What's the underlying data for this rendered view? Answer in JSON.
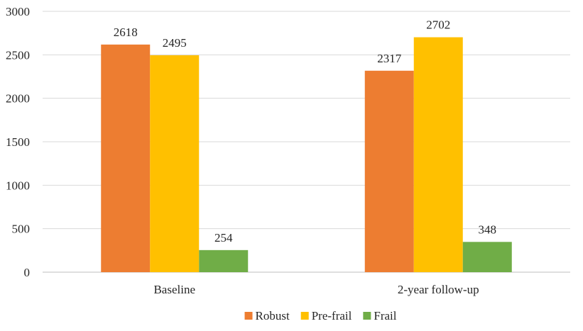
{
  "chart_data": {
    "type": "bar",
    "categories": [
      "Baseline",
      "2-year follow-up"
    ],
    "series": [
      {
        "name": "Robust",
        "values": [
          2618,
          2317
        ],
        "color": "#ED7D31"
      },
      {
        "name": "Pre-frail",
        "values": [
          2495,
          2702
        ],
        "color": "#FFC000"
      },
      {
        "name": "Frail",
        "values": [
          254,
          348
        ],
        "color": "#70AD47"
      }
    ],
    "ylim": [
      0,
      3000
    ],
    "yticks": [
      0,
      500,
      1000,
      1500,
      2000,
      2500,
      3000
    ],
    "grid": true,
    "legend_position": "bottom",
    "gridline_color": "#D9D9D9"
  }
}
